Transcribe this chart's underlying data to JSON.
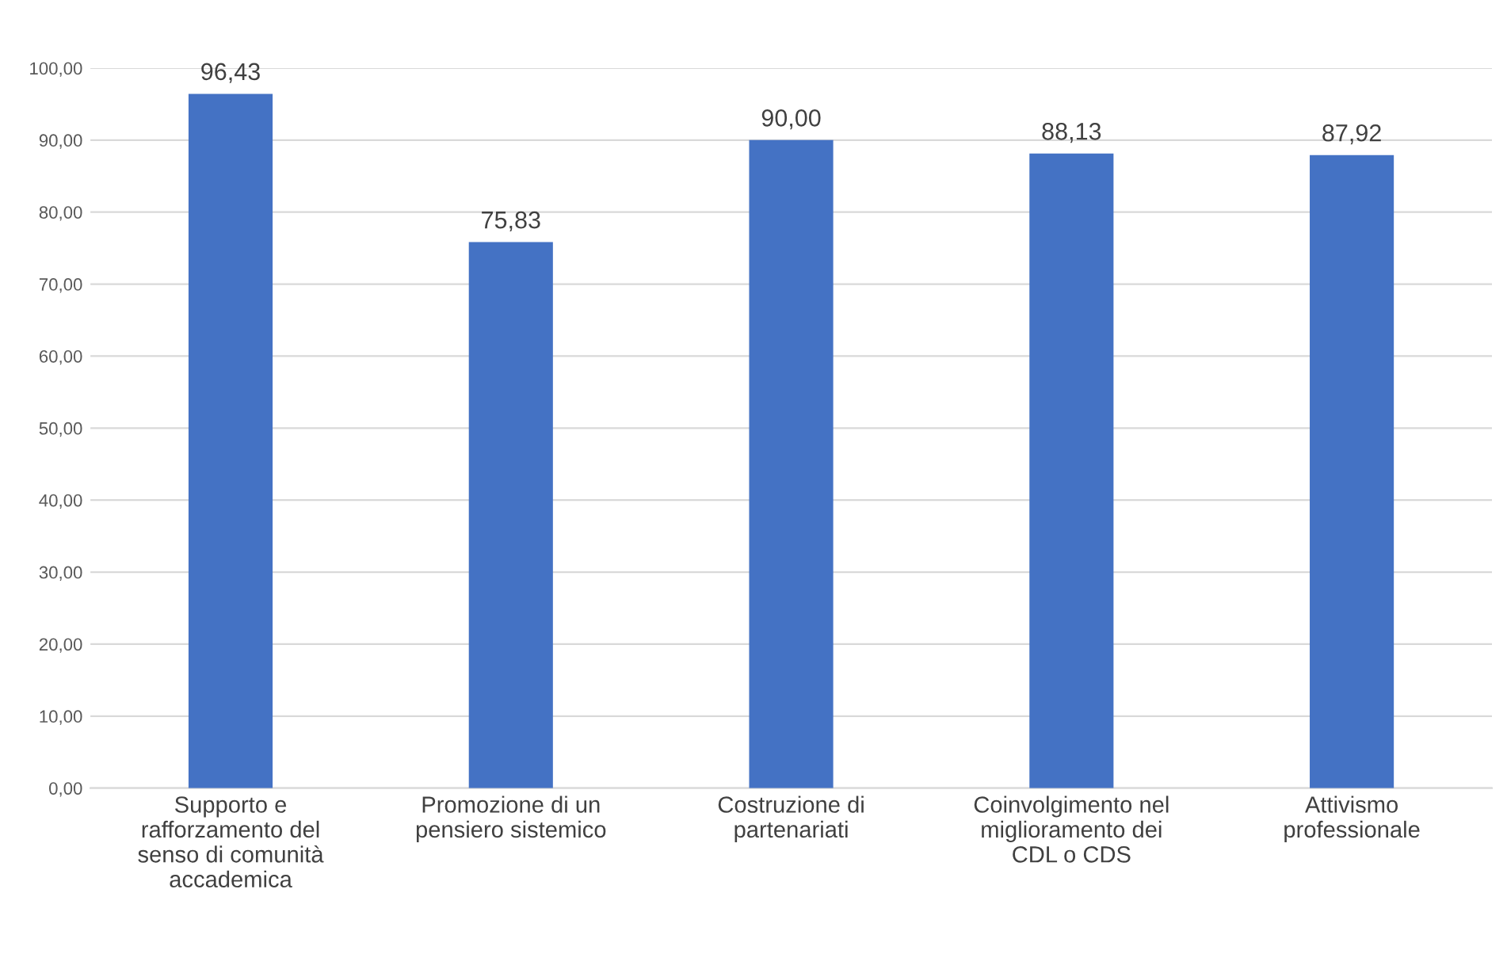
{
  "chart_data": {
    "type": "bar",
    "categories": [
      "Supporto e\nrafforzamento del\nsenso di comunità\naccademica",
      "Promozione di un\npensiero sistemico",
      "Costruzione di\npartenariati",
      "Coinvolgimento nel\nmiglioramento dei\nCDL o CDS",
      "Attivismo\nprofessionale"
    ],
    "values": [
      96.43,
      75.83,
      90.0,
      88.13,
      87.92
    ],
    "value_labels": [
      "96,43",
      "75,83",
      "90,00",
      "88,13",
      "87,92"
    ],
    "color": "#4472c4",
    "ylim": [
      0,
      100
    ],
    "yticks": [
      {
        "value": 0,
        "label": "0,00"
      },
      {
        "value": 10,
        "label": "10,00"
      },
      {
        "value": 20,
        "label": "20,00"
      },
      {
        "value": 30,
        "label": "30,00"
      },
      {
        "value": 40,
        "label": "40,00"
      },
      {
        "value": 50,
        "label": "50,00"
      },
      {
        "value": 60,
        "label": "60,00"
      },
      {
        "value": 70,
        "label": "70,00"
      },
      {
        "value": 80,
        "label": "80,00"
      },
      {
        "value": 90,
        "label": "90,00"
      },
      {
        "value": 100,
        "label": "100,00"
      }
    ],
    "grid": "y"
  }
}
